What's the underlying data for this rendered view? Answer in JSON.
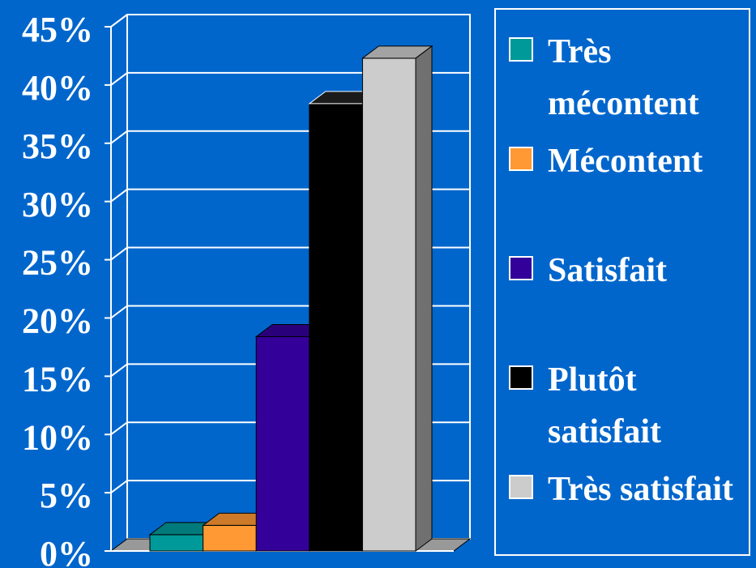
{
  "chart_data": {
    "type": "bar3d",
    "categories": [
      null
    ],
    "series": [
      {
        "name": "Très mécontent",
        "color": "#009999",
        "values": [
          1.4
        ]
      },
      {
        "name": "Mécontent",
        "color": "#ff9933",
        "values": [
          2.2
        ]
      },
      {
        "name": "Satisfait",
        "color": "#330099",
        "values": [
          18.4
        ]
      },
      {
        "name": "Plutôt satisfait",
        "color": "#000000",
        "values": [
          38.4
        ]
      },
      {
        "name": "Très satisfait",
        "color": "#cccccc",
        "values": [
          42.3
        ]
      }
    ],
    "ylim": [
      0,
      45
    ],
    "yticks": [
      {
        "value": 0,
        "label": "0%"
      },
      {
        "value": 5,
        "label": "5%"
      },
      {
        "value": 10,
        "label": "10%"
      },
      {
        "value": 15,
        "label": "15%"
      },
      {
        "value": 20,
        "label": "20%"
      },
      {
        "value": 25,
        "label": "25%"
      },
      {
        "value": 30,
        "label": "30%"
      },
      {
        "value": 35,
        "label": "35%"
      },
      {
        "value": 40,
        "label": "40%"
      },
      {
        "value": 45,
        "label": "45%"
      }
    ],
    "grid": true,
    "legend": "right"
  }
}
